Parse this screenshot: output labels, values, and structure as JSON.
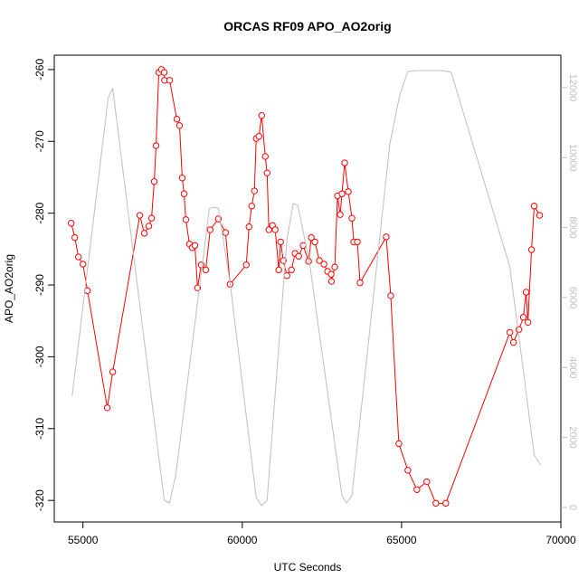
{
  "chart_data": {
    "type": "line",
    "title": "ORCAS RF09 APO_AO2orig",
    "x_label": "UTC Seconds",
    "y_label": "APO_AO2orig",
    "xlim": [
      54100,
      70000
    ],
    "ylim": [
      -323,
      -258
    ],
    "y2lim": [
      -414,
      12930
    ],
    "xticks": [
      55000,
      60000,
      65000,
      70000
    ],
    "yticks": [
      -320,
      -310,
      -300,
      -290,
      -280,
      -270,
      -260
    ],
    "y2ticks": [
      0,
      2000,
      4000,
      6000,
      8000,
      10000,
      12000
    ],
    "series": [
      {
        "color": "#ff0000",
        "markers": true,
        "x": [
          54632,
          54745,
          54858,
          55000,
          55142,
          55765,
          55935,
          56785,
          56926,
          57068,
          57153,
          57238,
          57295,
          57380,
          57465,
          57550,
          57560,
          57720,
          57946,
          58031,
          58116,
          58173,
          58229,
          58343,
          58428,
          58513,
          58598,
          58711,
          58853,
          58994,
          59249,
          59476,
          59618,
          60127,
          60212,
          60297,
          60382,
          60439,
          60524,
          60609,
          60722,
          60779,
          60836,
          60949,
          61034,
          61147,
          61204,
          61289,
          61402,
          61544,
          61657,
          61771,
          61912,
          62082,
          62167,
          62280,
          62422,
          62564,
          62677,
          62790,
          62800,
          62904,
          62989,
          63074,
          63130,
          63215,
          63328,
          63442,
          63499,
          63612,
          63697,
          64519,
          64660,
          64915,
          65198,
          65482,
          65793,
          66076,
          66388,
          68399,
          68513,
          68683,
          68824,
          68909,
          68966,
          69079,
          69164,
          69334
        ],
        "values": [
          -281.4,
          -283.4,
          -286.1,
          -287.1,
          -290.8,
          -307.1,
          -302.1,
          -280.3,
          -282.8,
          -281.8,
          -280.7,
          -275.6,
          -270.6,
          -260.4,
          -260.0,
          -260.4,
          -261.5,
          -261.5,
          -266.9,
          -267.8,
          -275.1,
          -277.3,
          -280.9,
          -284.3,
          -284.8,
          -284.5,
          -290.4,
          -287.2,
          -287.9,
          -282.3,
          -280.8,
          -282.7,
          -289.9,
          -287.2,
          -281.9,
          -279.0,
          -276.9,
          -269.6,
          -269.3,
          -266.4,
          -272.1,
          -274.4,
          -282.3,
          -281.7,
          -282.3,
          -287.9,
          -284.0,
          -286.6,
          -288.7,
          -287.9,
          -285.6,
          -286.0,
          -284.5,
          -286.7,
          -283.4,
          -284.0,
          -286.6,
          -287.1,
          -288.1,
          -288.5,
          -289.5,
          -287.5,
          -277.6,
          -280.2,
          -277.3,
          -273.0,
          -277.0,
          -280.7,
          -284.0,
          -284.0,
          -289.7,
          -283.3,
          -291.5,
          -312.1,
          -315.8,
          -318.5,
          -317.4,
          -320.4,
          -320.4,
          -296.6,
          -298.0,
          -296.2,
          -294.5,
          -291.0,
          -295.2,
          -285.1,
          -279.0,
          -280.3
        ]
      },
      {
        "color": "#bebebe",
        "axis": "y2",
        "markers": false,
        "x": [
          54660,
          55793,
          55935,
          57550,
          57720,
          57918,
          58966,
          59079,
          59249,
          59618,
          60439,
          60609,
          60779,
          61402,
          61601,
          61742,
          62110,
          63130,
          63272,
          63442,
          64632,
          64943,
          65198,
          65482,
          66275,
          66558,
          68399,
          69164,
          69363
        ],
        "values": [
          3181,
          11715,
          11973,
          207,
          129,
          957,
          8534,
          8585,
          8560,
          6413,
          284,
          52,
          207,
          7655,
          8689,
          8637,
          7008,
          336,
          129,
          336,
          10396,
          11792,
          12465,
          12490,
          12490,
          12439,
          6879,
          1500,
          1215
        ]
      }
    ]
  }
}
